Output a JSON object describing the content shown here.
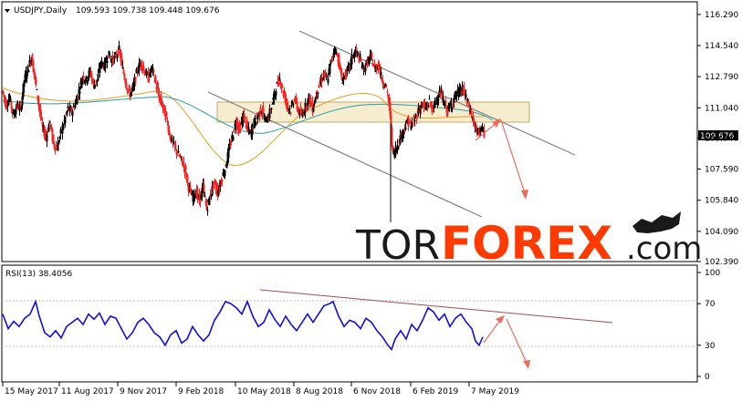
{
  "chart_data": [
    {
      "type": "candlestick",
      "symbol_header": "USDJPY,Daily",
      "ohlc_header": "109.593 109.738 109.448 109.676",
      "last_price_label": "109.676",
      "ylim": [
        102.39,
        117.0
      ],
      "yticks": [
        "116.290",
        "114.540",
        "112.790",
        "111.040",
        "109.340",
        "107.590",
        "105.840",
        "104.090",
        "102.390"
      ],
      "xticks": [
        "15 May 2017",
        "11 Aug 2017",
        "9 Nov 2017",
        "9 Feb 2018",
        "10 May 2018",
        "8 Aug 2018",
        "6 Nov 2018",
        "6 Feb 2019",
        "7 May 2019"
      ],
      "price_path": [
        [
          0,
          112.0
        ],
        [
          4,
          111.2
        ],
        [
          8,
          111.6
        ],
        [
          12,
          110.6
        ],
        [
          16,
          111.2
        ],
        [
          20,
          110.9
        ],
        [
          24,
          112.6
        ],
        [
          28,
          113.2
        ],
        [
          32,
          113.9
        ],
        [
          36,
          112.6
        ],
        [
          40,
          111.2
        ],
        [
          44,
          109.9
        ],
        [
          48,
          109.4
        ],
        [
          52,
          110.3
        ],
        [
          56,
          109.0
        ],
        [
          60,
          108.8
        ],
        [
          64,
          109.6
        ],
        [
          68,
          110.3
        ],
        [
          72,
          111.0
        ],
        [
          76,
          110.8
        ],
        [
          80,
          111.3
        ],
        [
          84,
          112.0
        ],
        [
          88,
          112.8
        ],
        [
          92,
          112.6
        ],
        [
          96,
          113.1
        ],
        [
          100,
          112.3
        ],
        [
          104,
          112.6
        ],
        [
          108,
          113.6
        ],
        [
          112,
          113.4
        ],
        [
          116,
          114.1
        ],
        [
          120,
          113.7
        ],
        [
          124,
          113.9
        ],
        [
          128,
          114.3
        ],
        [
          132,
          113.2
        ],
        [
          136,
          112.3
        ],
        [
          140,
          111.8
        ],
        [
          144,
          112.3
        ],
        [
          148,
          113.2
        ],
        [
          152,
          113.6
        ],
        [
          156,
          113.1
        ],
        [
          160,
          112.7
        ],
        [
          164,
          113.3
        ],
        [
          168,
          112.4
        ],
        [
          172,
          111.6
        ],
        [
          176,
          111.1
        ],
        [
          180,
          110.4
        ],
        [
          184,
          109.4
        ],
        [
          188,
          108.9
        ],
        [
          192,
          108.5
        ],
        [
          196,
          108.1
        ],
        [
          200,
          107.6
        ],
        [
          204,
          106.6
        ],
        [
          208,
          106.0
        ],
        [
          212,
          106.3
        ],
        [
          216,
          105.8
        ],
        [
          220,
          106.6
        ],
        [
          224,
          105.3
        ],
        [
          228,
          106.2
        ],
        [
          232,
          106.8
        ],
        [
          236,
          106.3
        ],
        [
          240,
          107.0
        ],
        [
          244,
          107.6
        ],
        [
          248,
          108.6
        ],
        [
          252,
          109.4
        ],
        [
          256,
          110.3
        ],
        [
          260,
          109.8
        ],
        [
          264,
          110.6
        ],
        [
          268,
          109.9
        ],
        [
          272,
          109.6
        ],
        [
          276,
          110.2
        ],
        [
          280,
          110.6
        ],
        [
          284,
          111.0
        ],
        [
          288,
          110.3
        ],
        [
          292,
          110.6
        ],
        [
          296,
          111.3
        ],
        [
          300,
          112.2
        ],
        [
          304,
          112.7
        ],
        [
          308,
          111.9
        ],
        [
          312,
          111.2
        ],
        [
          316,
          110.9
        ],
        [
          320,
          111.6
        ],
        [
          324,
          110.9
        ],
        [
          328,
          110.6
        ],
        [
          332,
          111.1
        ],
        [
          336,
          111.6
        ],
        [
          340,
          111.0
        ],
        [
          344,
          111.8
        ],
        [
          348,
          112.4
        ],
        [
          352,
          112.9
        ],
        [
          356,
          112.6
        ],
        [
          360,
          113.6
        ],
        [
          364,
          114.4
        ],
        [
          368,
          113.8
        ],
        [
          372,
          112.6
        ],
        [
          376,
          112.9
        ],
        [
          380,
          113.3
        ],
        [
          384,
          114.0
        ],
        [
          388,
          114.2
        ],
        [
          392,
          113.7
        ],
        [
          396,
          113.2
        ],
        [
          400,
          113.6
        ],
        [
          404,
          113.9
        ],
        [
          408,
          113.2
        ],
        [
          412,
          113.5
        ],
        [
          416,
          112.6
        ],
        [
          420,
          112.3
        ],
        [
          424,
          111.2
        ],
        [
          428,
          108.4
        ],
        [
          432,
          108.8
        ],
        [
          436,
          109.4
        ],
        [
          440,
          109.8
        ],
        [
          444,
          110.3
        ],
        [
          448,
          110.0
        ],
        [
          452,
          110.4
        ],
        [
          456,
          110.9
        ],
        [
          460,
          111.2
        ],
        [
          464,
          111.0
        ],
        [
          468,
          111.4
        ],
        [
          472,
          110.9
        ],
        [
          476,
          111.6
        ],
        [
          480,
          111.9
        ],
        [
          484,
          111.3
        ],
        [
          488,
          110.9
        ],
        [
          492,
          111.2
        ],
        [
          496,
          111.7
        ],
        [
          500,
          111.9
        ],
        [
          504,
          112.1
        ],
        [
          508,
          111.6
        ],
        [
          512,
          111.0
        ],
        [
          516,
          110.3
        ],
        [
          520,
          109.6
        ],
        [
          524,
          109.9
        ],
        [
          528,
          109.6
        ]
      ],
      "rsi": {
        "label": "RSI(13) 38.4056",
        "ylim": [
          0,
          100
        ],
        "yticks": [
          "100",
          "70",
          "30",
          "0"
        ],
        "levels": [
          70,
          30
        ],
        "path": [
          [
            0,
            60
          ],
          [
            6,
            46
          ],
          [
            12,
            53
          ],
          [
            18,
            48
          ],
          [
            24,
            56
          ],
          [
            30,
            60
          ],
          [
            36,
            72
          ],
          [
            40,
            58
          ],
          [
            46,
            42
          ],
          [
            52,
            38
          ],
          [
            58,
            44
          ],
          [
            64,
            37
          ],
          [
            70,
            48
          ],
          [
            76,
            52
          ],
          [
            82,
            56
          ],
          [
            88,
            50
          ],
          [
            94,
            60
          ],
          [
            100,
            55
          ],
          [
            106,
            61
          ],
          [
            112,
            50
          ],
          [
            118,
            58
          ],
          [
            124,
            56
          ],
          [
            130,
            46
          ],
          [
            136,
            36
          ],
          [
            142,
            42
          ],
          [
            148,
            52
          ],
          [
            154,
            56
          ],
          [
            160,
            50
          ],
          [
            166,
            42
          ],
          [
            172,
            38
          ],
          [
            178,
            30
          ],
          [
            184,
            40
          ],
          [
            190,
            44
          ],
          [
            196,
            32
          ],
          [
            202,
            36
          ],
          [
            208,
            48
          ],
          [
            214,
            40
          ],
          [
            220,
            34
          ],
          [
            226,
            40
          ],
          [
            232,
            54
          ],
          [
            238,
            62
          ],
          [
            244,
            72
          ],
          [
            250,
            70
          ],
          [
            256,
            66
          ],
          [
            262,
            60
          ],
          [
            268,
            72
          ],
          [
            274,
            58
          ],
          [
            280,
            48
          ],
          [
            286,
            52
          ],
          [
            292,
            64
          ],
          [
            298,
            55
          ],
          [
            304,
            48
          ],
          [
            310,
            58
          ],
          [
            316,
            50
          ],
          [
            322,
            44
          ],
          [
            328,
            52
          ],
          [
            334,
            60
          ],
          [
            340,
            52
          ],
          [
            346,
            60
          ],
          [
            352,
            68
          ],
          [
            358,
            70
          ],
          [
            362,
            72
          ],
          [
            368,
            58
          ],
          [
            374,
            48
          ],
          [
            380,
            54
          ],
          [
            386,
            52
          ],
          [
            392,
            46
          ],
          [
            398,
            56
          ],
          [
            404,
            52
          ],
          [
            410,
            44
          ],
          [
            416,
            38
          ],
          [
            422,
            30
          ],
          [
            426,
            26
          ],
          [
            430,
            36
          ],
          [
            436,
            44
          ],
          [
            442,
            36
          ],
          [
            448,
            50
          ],
          [
            454,
            44
          ],
          [
            460,
            54
          ],
          [
            466,
            66
          ],
          [
            472,
            62
          ],
          [
            478,
            54
          ],
          [
            484,
            60
          ],
          [
            490,
            48
          ],
          [
            496,
            56
          ],
          [
            502,
            60
          ],
          [
            508,
            52
          ],
          [
            514,
            46
          ],
          [
            518,
            34
          ],
          [
            522,
            30
          ],
          [
            526,
            38
          ]
        ]
      }
    }
  ],
  "watermark": {
    "tor": "TOR",
    "forex": "FOREX",
    "com": ".com"
  }
}
